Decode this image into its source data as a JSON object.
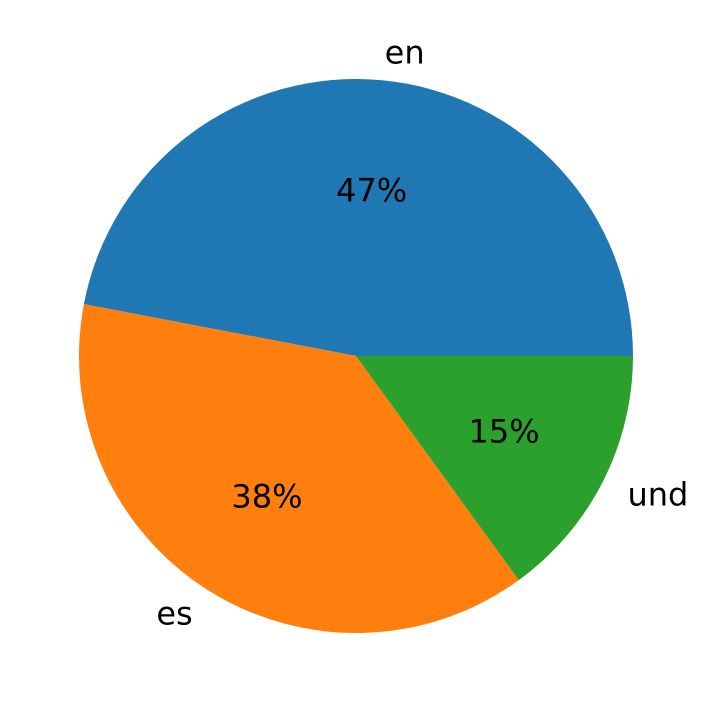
{
  "chart_data": {
    "type": "pie",
    "title": "",
    "slices": [
      {
        "label": "en",
        "value": 47,
        "pct_label": "47%",
        "color": "#1f77b4"
      },
      {
        "label": "es",
        "value": 38,
        "pct_label": "38%",
        "color": "#ff7f0e"
      },
      {
        "label": "und",
        "value": 15,
        "pct_label": "15%",
        "color": "#2ca02c"
      }
    ],
    "start_angle_deg": 0,
    "direction": "counterclockwise",
    "legend": "none"
  }
}
